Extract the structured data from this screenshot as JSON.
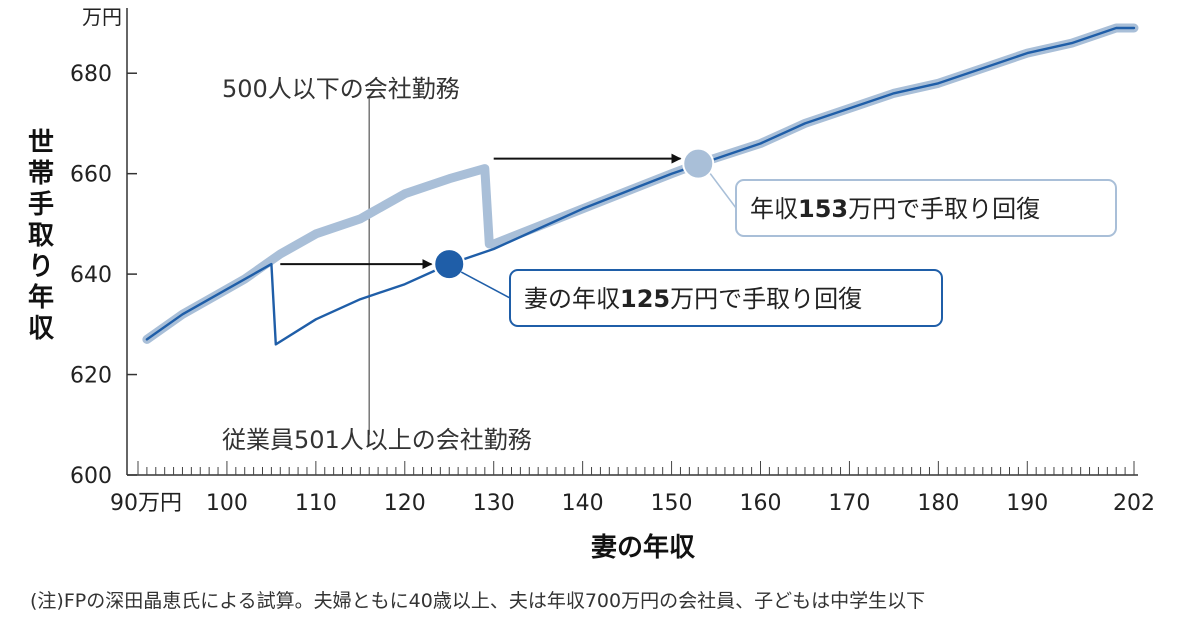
{
  "chart_data": {
    "type": "line",
    "ylabel": "世帯手取り年収",
    "y_unit": "万円",
    "xlabel": "妻の年収",
    "x_first_tick_label": "90万円",
    "x_tick_values": [
      90,
      100,
      110,
      120,
      130,
      140,
      150,
      160,
      170,
      180,
      190,
      202
    ],
    "x_tick_labels": [
      "90万円",
      "100",
      "110",
      "120",
      "130",
      "140",
      "150",
      "160",
      "170",
      "180",
      "190",
      "202"
    ],
    "xlim": [
      90,
      202
    ],
    "y_tick_values": [
      600,
      620,
      640,
      660,
      680
    ],
    "ylim": [
      600,
      690
    ],
    "grid": false,
    "series": [
      {
        "key": "small_company",
        "color": "#a9bfd8",
        "x": [
          91,
          95,
          100,
          102,
          106,
          110,
          115,
          116,
          120,
          125,
          129,
          129.5,
          130,
          135,
          140,
          145,
          150,
          153,
          160,
          165,
          170,
          175,
          180,
          185,
          190,
          195,
          200,
          202
        ],
        "y": [
          627,
          632,
          637,
          639,
          644,
          648,
          651,
          652,
          656,
          659,
          661,
          646,
          646,
          649.5,
          653,
          656.5,
          660,
          662,
          666,
          670,
          673,
          676,
          678,
          681,
          684,
          686,
          689,
          689
        ]
      },
      {
        "key": "large_company",
        "color": "#1f5ea8",
        "x": [
          91,
          95,
          100,
          105,
          105.5,
          110,
          115,
          120,
          125,
          130,
          135,
          140,
          145,
          150,
          155,
          160,
          165,
          170,
          175,
          180,
          185,
          190,
          195,
          200,
          202
        ],
        "y": [
          627,
          632,
          637,
          642,
          626,
          631,
          635,
          638,
          642,
          645,
          649,
          653,
          656.5,
          660,
          663,
          666,
          670,
          673,
          676,
          678,
          681,
          684,
          686,
          689,
          689
        ]
      }
    ],
    "markers": [
      {
        "series": "small_company",
        "x": 153,
        "y": 662
      },
      {
        "series": "large_company",
        "x": 125,
        "y": 642
      }
    ],
    "arrows": [
      {
        "from": [
          130,
          663
        ],
        "to": [
          151,
          663
        ]
      },
      {
        "from": [
          106,
          642
        ],
        "to": [
          123,
          642
        ]
      }
    ],
    "reference_line": {
      "x": 116,
      "y_from": 608,
      "y_to": 675
    },
    "annotations": [
      {
        "key": "small_company_label",
        "text": "500人以下の会社勤務"
      },
      {
        "key": "large_company_label",
        "text": "従業員501人以上の会社勤務"
      }
    ],
    "callouts": [
      {
        "key": "small_recovery",
        "parts": [
          {
            "text": "年収",
            "bold": false
          },
          {
            "text": "153",
            "bold": true
          },
          {
            "text": "万円で手取り回復",
            "bold": false
          }
        ]
      },
      {
        "key": "large_recovery",
        "parts": [
          {
            "text": "妻の年収",
            "bold": false
          },
          {
            "text": "125",
            "bold": true
          },
          {
            "text": "万円で手取り回復",
            "bold": false
          }
        ]
      }
    ]
  },
  "note": "(注)FPの深田晶恵氏による試算。夫婦ともに40歳以上、夫は年収700万円の会社員、子どもは中学生以下"
}
